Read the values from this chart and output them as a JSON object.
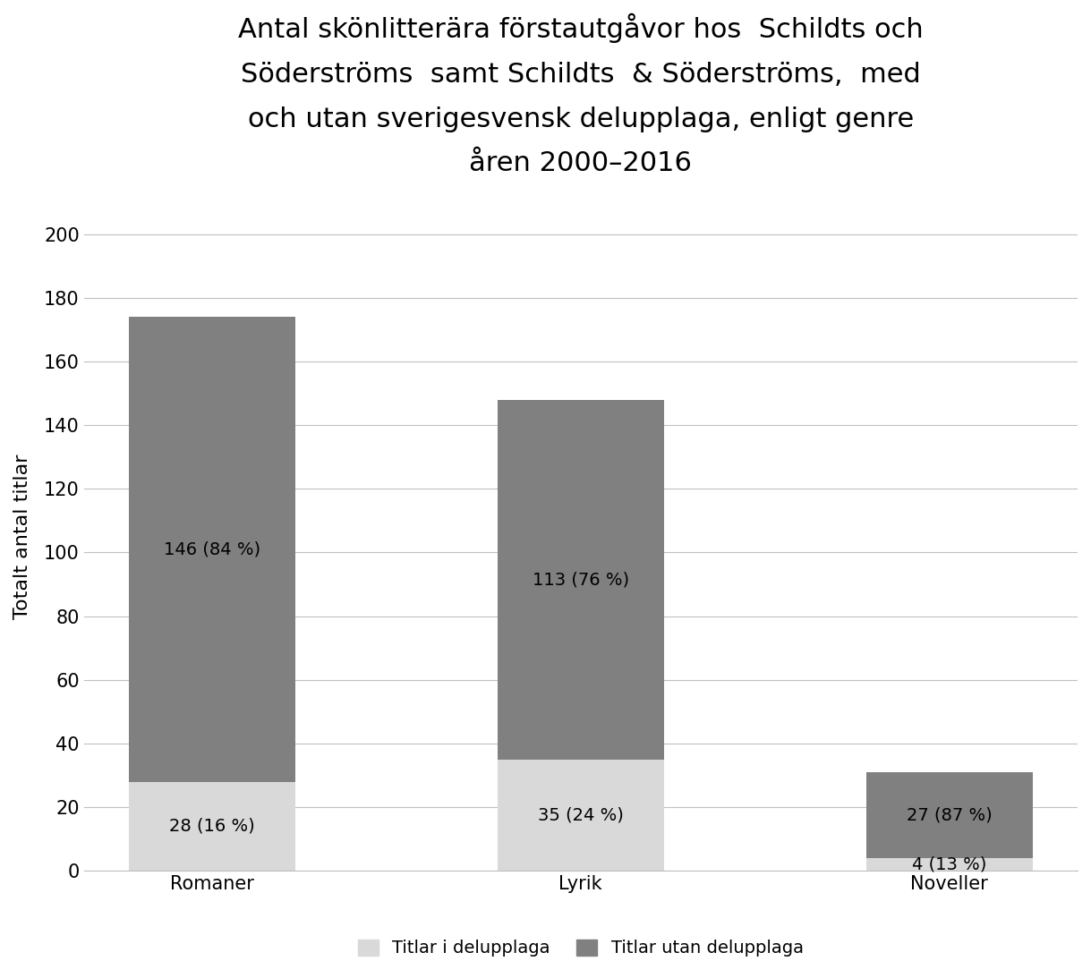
{
  "title": "Antal skönlitterära förstautgåvor hos  Schildts och\nSöderströms  samt Schildts  & Söderströms,  med\noch utan sverigesvensk delupplaga, enligt genre\nåren 2000–2016",
  "ylabel": "Totalt antal titlar",
  "categories": [
    "Romaner",
    "Lyrik",
    "Noveller"
  ],
  "values_delupplaga": [
    28,
    35,
    4
  ],
  "values_utan": [
    146,
    113,
    27
  ],
  "labels_delupplaga": [
    "28 (16 %)",
    "35 (24 %)",
    "4 (13 %)"
  ],
  "labels_utan": [
    "146 (84 %)",
    "113 (76 %)",
    "27 (87 %)"
  ],
  "color_delupplaga": "#d9d9d9",
  "color_utan": "#808080",
  "ylim": [
    0,
    210
  ],
  "yticks": [
    0,
    20,
    40,
    60,
    80,
    100,
    120,
    140,
    160,
    180,
    200
  ],
  "legend_labels": [
    "Titlar i delupplaga",
    "Titlar utan delupplaga"
  ],
  "bar_width": 0.45,
  "background_color": "#ffffff",
  "title_fontsize": 22,
  "axis_fontsize": 16,
  "tick_fontsize": 15,
  "label_fontsize": 14,
  "legend_fontsize": 14
}
